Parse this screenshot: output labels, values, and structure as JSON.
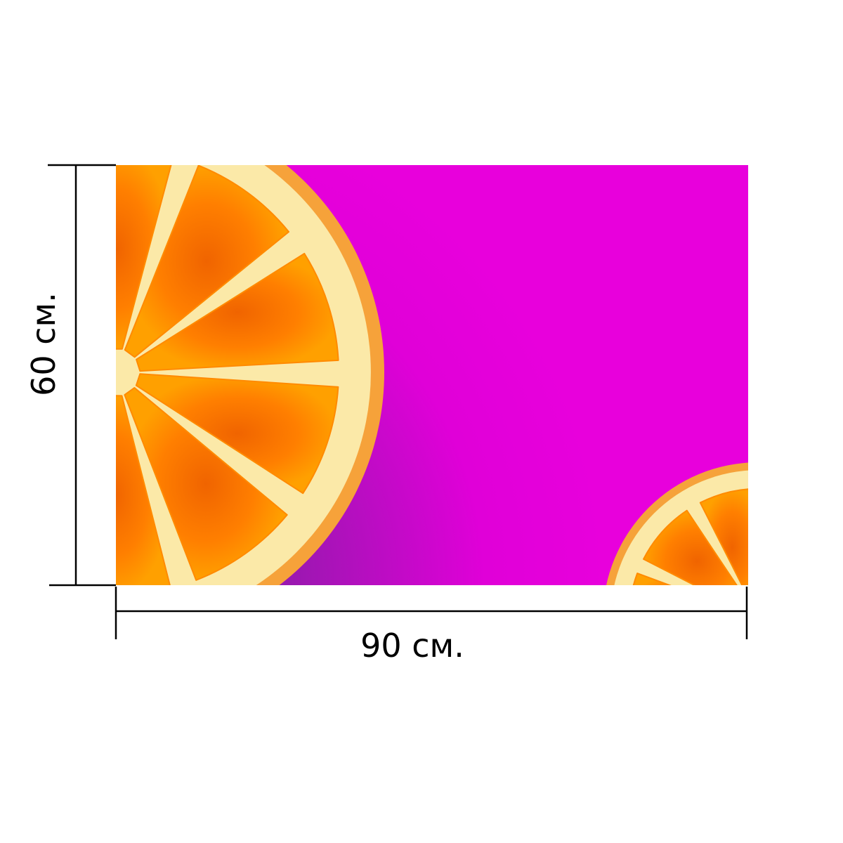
{
  "dimensions": {
    "width_label": "90 см.",
    "height_label": "60 см."
  },
  "image": {
    "background_colors": [
      "#e600dc",
      "#b012b8"
    ],
    "fruit_colors": {
      "peel": "#fbe9a8",
      "rind": "#f6a23a",
      "flesh": "#ff8a00",
      "flesh_center": "#f06a00"
    }
  }
}
